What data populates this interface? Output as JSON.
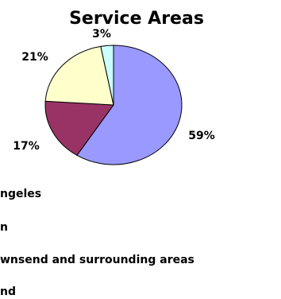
{
  "chart_data": {
    "type": "pie",
    "title": "Service Areas",
    "slices": [
      {
        "label": "...ngeles",
        "value": 59,
        "percent_label": "59%",
        "color": "#9999ff"
      },
      {
        "label": "...n",
        "value": 17,
        "percent_label": "17%",
        "color": "#993366"
      },
      {
        "label": "...wnsend and surrounding areas",
        "value": 21,
        "percent_label": "21%",
        "color": "#ffffcc"
      },
      {
        "label": "...nd",
        "value": 3,
        "percent_label": "3%",
        "color": "#ccffff"
      }
    ],
    "legend_placement": "bottom-left (cropped)"
  }
}
